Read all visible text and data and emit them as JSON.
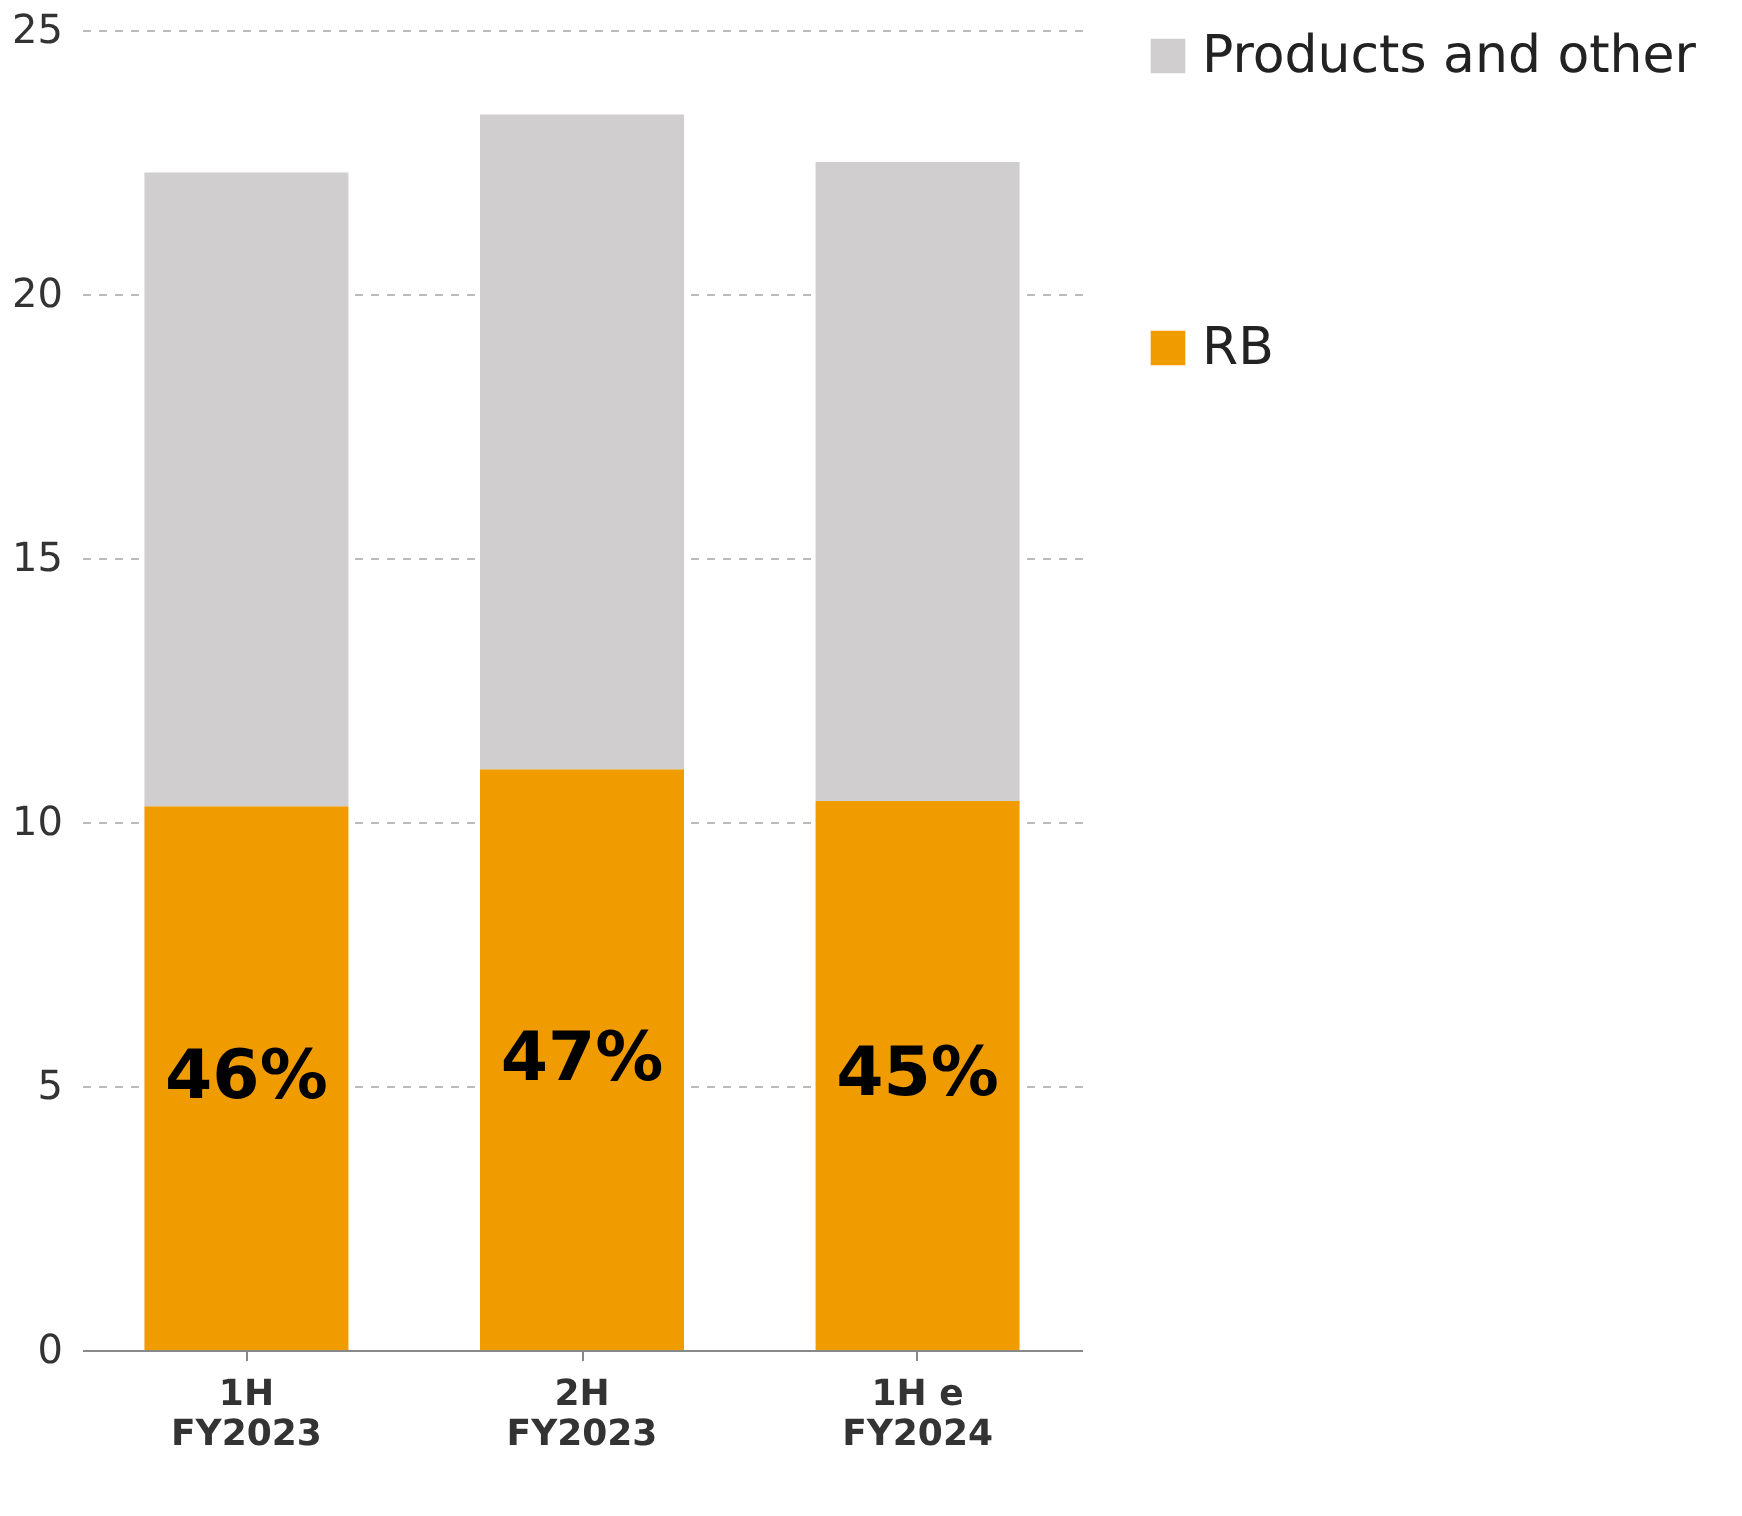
{
  "chart_data": {
    "type": "bar",
    "stacked": true,
    "categories": [
      "1H\nFY2023",
      "2H\nFY2023",
      "1H e\nFY2024"
    ],
    "series": [
      {
        "name": "RB",
        "color": "#f09c00",
        "values": [
          10.3,
          11.0,
          10.4
        ]
      },
      {
        "name": "Products and other",
        "color": "#d0cecf",
        "values": [
          12.0,
          12.4,
          12.1
        ]
      }
    ],
    "annotations": [
      "46%",
      "47%",
      "45%"
    ],
    "ylim": [
      0,
      25
    ],
    "yticks": [
      0,
      5,
      10,
      15,
      20,
      25
    ],
    "grid": "y",
    "legend": "right"
  }
}
